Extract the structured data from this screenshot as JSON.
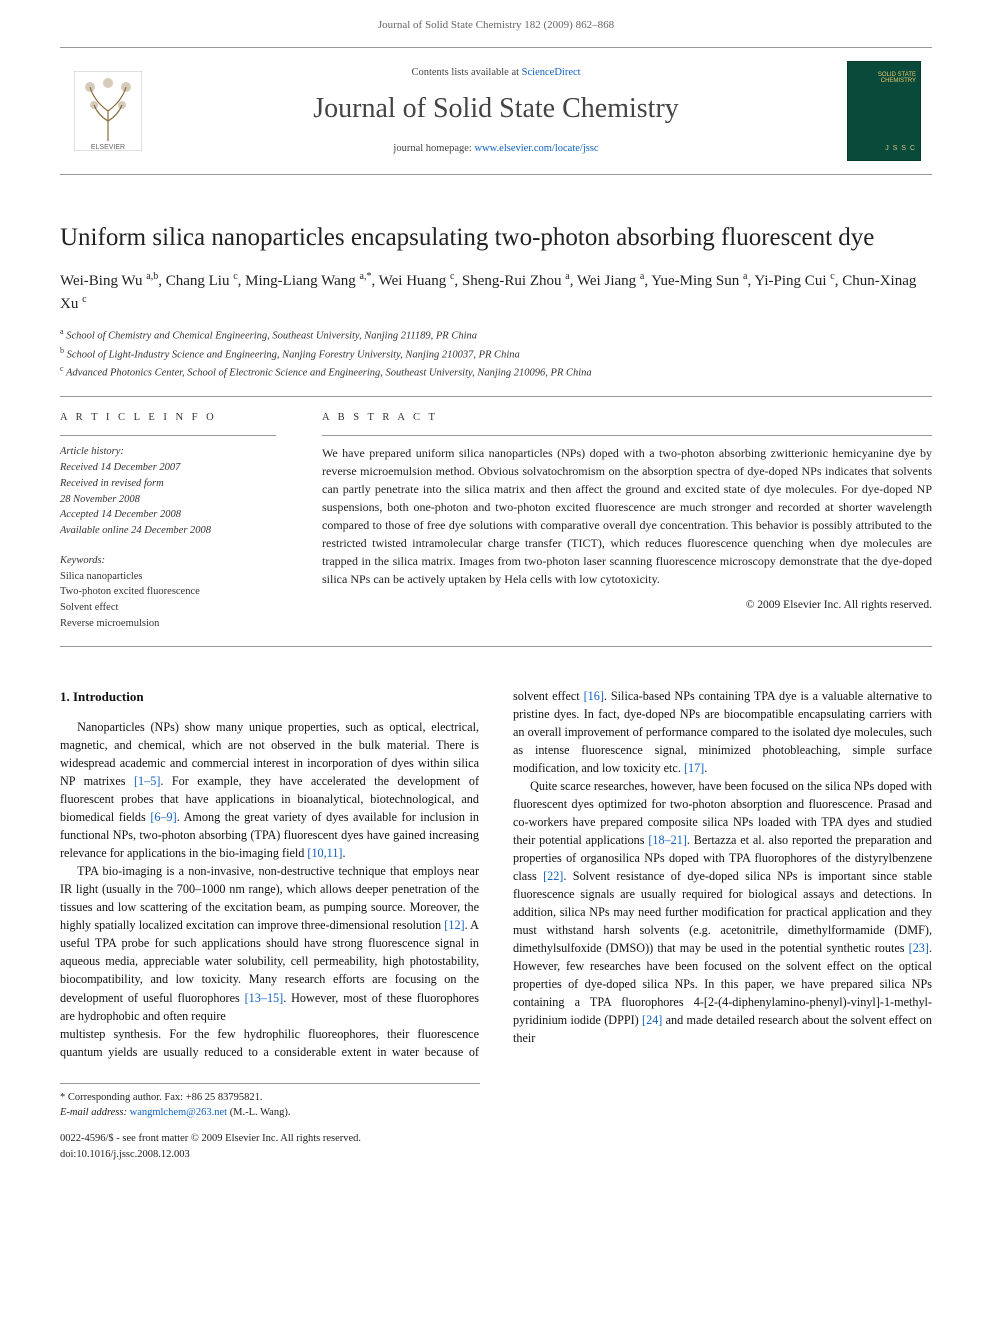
{
  "running_header": "Journal of Solid State Chemistry 182 (2009) 862–868",
  "banner": {
    "contents_line_prefix": "Contents lists available at ",
    "contents_line_link": "ScienceDirect",
    "journal_name": "Journal of Solid State Chemistry",
    "homepage_prefix": "journal homepage: ",
    "homepage_link": "www.elsevier.com/locate/jssc",
    "cover_label_line1": "SOLID STATE",
    "cover_label_line2": "CHEMISTRY",
    "cover_jssc": "J S S C"
  },
  "title": "Uniform silica nanoparticles encapsulating two-photon absorbing fluorescent dye",
  "authors_html": "Wei-Bing Wu <sup>a,b</sup>, Chang Liu <sup>c</sup>, Ming-Liang Wang <sup>a,*</sup>, Wei Huang <sup>c</sup>, Sheng-Rui Zhou <sup>a</sup>, Wei Jiang <sup>a</sup>, Yue-Ming Sun <sup>a</sup>, Yi-Ping Cui <sup>c</sup>, Chun-Xinag Xu <sup>c</sup>",
  "affiliations": {
    "a": "School of Chemistry and Chemical Engineering, Southeast University, Nanjing 211189, PR China",
    "b": "School of Light-Industry Science and Engineering, Nanjing Forestry University, Nanjing 210037, PR China",
    "c": "Advanced Photonics Center, School of Electronic Science and Engineering, Southeast University, Nanjing 210096, PR China"
  },
  "info": {
    "head": "A R T I C L E  I N F O",
    "history_label": "Article history:",
    "received": "Received 14 December 2007",
    "revised1": "Received in revised form",
    "revised2": "28 November 2008",
    "accepted": "Accepted 14 December 2008",
    "online": "Available online 24 December 2008",
    "keywords_label": "Keywords:",
    "kw1": "Silica nanoparticles",
    "kw2": "Two-photon excited fluorescence",
    "kw3": "Solvent effect",
    "kw4": "Reverse microemulsion"
  },
  "abstract": {
    "head": "A B S T R A C T",
    "text": "We have prepared uniform silica nanoparticles (NPs) doped with a two-photon absorbing zwitterionic hemicyanine dye by reverse microemulsion method. Obvious solvatochromism on the absorption spectra of dye-doped NPs indicates that solvents can partly penetrate into the silica matrix and then affect the ground and excited state of dye molecules. For dye-doped NP suspensions, both one-photon and two-photon excited fluorescence are much stronger and recorded at shorter wavelength compared to those of free dye solutions with comparative overall dye concentration. This behavior is possibly attributed to the restricted twisted intramolecular charge transfer (TICT), which reduces fluorescence quenching when dye molecules are trapped in the silica matrix. Images from two-photon laser scanning fluorescence microscopy demonstrate that the dye-doped silica NPs can be actively uptaken by Hela cells with low cytotoxicity.",
    "copyright": "© 2009 Elsevier Inc. All rights reserved."
  },
  "body": {
    "h_intro": "1. Introduction",
    "p1": "Nanoparticles (NPs) show many unique properties, such as optical, electrical, magnetic, and chemical, which are not observed in the bulk material. There is widespread academic and commercial interest in incorporation of dyes within silica NP matrixes [1–5]. For example, they have accelerated the development of fluorescent probes that have applications in bioanalytical, biotechnological, and biomedical fields [6–9]. Among the great variety of dyes available for inclusion in functional NPs, two-photon absorbing (TPA) fluorescent dyes have gained increasing relevance for applications in the bio-imaging field [10,11].",
    "p2": "TPA bio-imaging is a non-invasive, non-destructive technique that employs near IR light (usually in the 700–1000 nm range), which allows deeper penetration of the tissues and low scattering of the excitation beam, as pumping source. Moreover, the highly spatially localized excitation can improve three-dimensional resolution [12]. A useful TPA probe for such applications should have strong fluorescence signal in aqueous media, appreciable water solubility, cell permeability, high photostability, biocompatibility, and low toxicity. Many research efforts are focusing on the development of useful fluorophores [13–15]. However, most of these fluorophores are hydrophobic and often require",
    "p3": "multistep synthesis. For the few hydrophilic fluoreophores, their fluorescence quantum yields are usually reduced to a considerable extent in water because of solvent effect [16]. Silica-based NPs containing TPA dye is a valuable alternative to pristine dyes. In fact, dye-doped NPs are biocompatible encapsulating carriers with an overall improvement of performance compared to the isolated dye molecules, such as intense fluorescence signal, minimized photobleaching, simple surface modification, and low toxicity etc. [17].",
    "p4": "Quite scarce researches, however, have been focused on the silica NPs doped with fluorescent dyes optimized for two-photon absorption and fluorescence. Prasad and co-workers have prepared composite silica NPs loaded with TPA dyes and studied their potential applications [18–21]. Bertazza et al. also reported the preparation and properties of organosilica NPs doped with TPA fluorophores of the distyrylbenzene class [22]. Solvent resistance of dye-doped silica NPs is important since stable fluorescence signals are usually required for biological assays and detections. In addition, silica NPs may need further modification for practical application and they must withstand harsh solvents (e.g. acetonitrile, dimethylformamide (DMF), dimethylsulfoxide (DMSO)) that may be used in the potential synthetic routes [23]. However, few researches have been focused on the solvent effect on the optical properties of dye-doped silica NPs. In this paper, we have prepared silica NPs containing a TPA fluorophores 4-[2-(4-diphenylamino-phenyl)-vinyl]-1-methyl-pyridinium iodide (DPPI) [24] and made detailed research about the solvent effect on their"
  },
  "footer": {
    "corr_label": "* Corresponding author. Fax: +86 25 83795821.",
    "email_label": "E-mail address:",
    "email": " wangmlchem@263.net ",
    "email_suffix": "(M.-L. Wang).",
    "front_matter": "0022-4596/$ - see front matter © 2009 Elsevier Inc. All rights reserved.",
    "doi": "doi:10.1016/j.jssc.2008.12.003"
  },
  "colors": {
    "link": "#1060c0",
    "rule": "#999999",
    "cover_bg": "#0a4a3a",
    "cover_text": "#e8c96a"
  }
}
